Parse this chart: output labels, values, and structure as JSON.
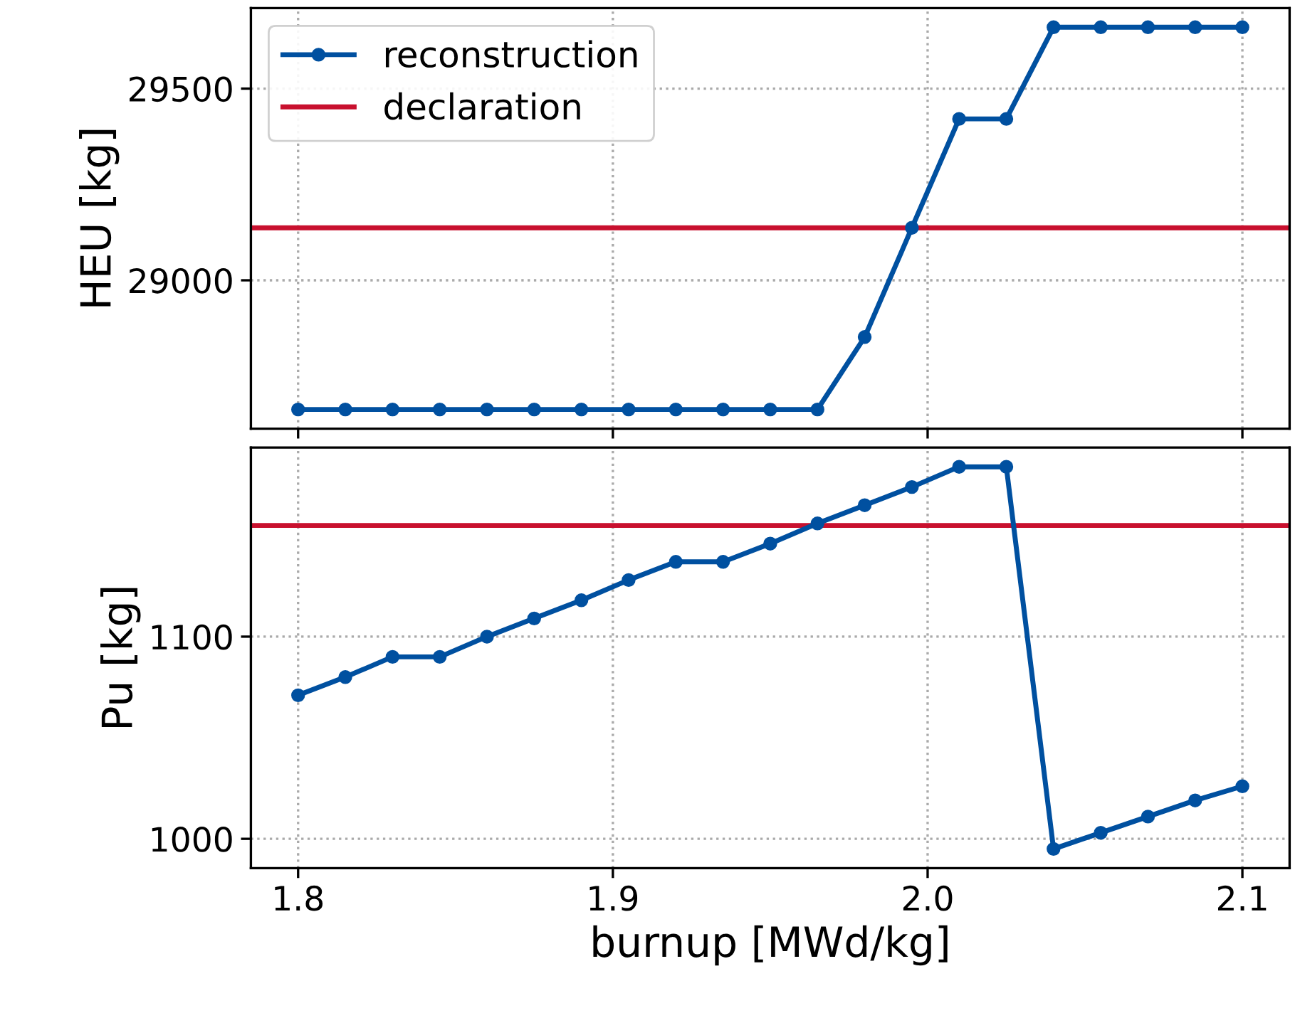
{
  "chart_data": [
    {
      "type": "line",
      "ylabel": "HEU [kg]",
      "x": [
        1.8,
        1.815,
        1.83,
        1.845,
        1.86,
        1.875,
        1.89,
        1.905,
        1.92,
        1.935,
        1.95,
        1.965,
        1.98,
        1.995,
        2.01,
        2.025,
        2.04,
        2.055,
        2.07,
        2.085,
        2.1
      ],
      "series": [
        {
          "name": "reconstruction",
          "color": "#0050a0",
          "values": [
            28663,
            28663,
            28663,
            28663,
            28663,
            28663,
            28663,
            28663,
            28663,
            28663,
            28663,
            28663,
            28852,
            29137,
            29421,
            29421,
            29660,
            29660,
            29660,
            29660,
            29660
          ]
        }
      ],
      "ref_lines": [
        {
          "axis": "y",
          "value": 29137,
          "label": "declaration",
          "color": "#c8102e"
        }
      ],
      "xlim": [
        1.785,
        2.115
      ],
      "xticks": [
        1.8,
        1.9,
        2.0,
        2.1
      ],
      "ylim": [
        28613,
        29710
      ],
      "yticks": [
        29000,
        29500
      ],
      "tick_labels": "y",
      "grid": true,
      "legend": "top left",
      "marker": "circle",
      "line_style": "solid"
    },
    {
      "type": "line",
      "xlabel": "burnup [MWd/kg]",
      "ylabel": "Pu [kg]",
      "x": [
        1.8,
        1.815,
        1.83,
        1.845,
        1.86,
        1.875,
        1.89,
        1.905,
        1.92,
        1.935,
        1.95,
        1.965,
        1.98,
        1.995,
        2.01,
        2.025,
        2.04,
        2.055,
        2.07,
        2.085,
        2.1
      ],
      "series": [
        {
          "color": "#0050a0",
          "values": [
            1071,
            1080,
            1090,
            1090,
            1100,
            1109,
            1118,
            1128,
            1137,
            1137,
            1146,
            1156,
            1165,
            1174,
            1184,
            1184,
            995,
            1003,
            1011,
            1019,
            1026
          ]
        }
      ],
      "ref_lines": [
        {
          "axis": "y",
          "value": 1155,
          "color": "#c8102e"
        }
      ],
      "xlim": [
        1.785,
        2.115
      ],
      "xticks": [
        1.8,
        1.9,
        {
          "value": 2.0,
          "label": "2.0"
        },
        2.1
      ],
      "ylim": [
        985.5,
        1193.5
      ],
      "yticks": [
        1000,
        1100
      ],
      "grid": true,
      "marker": "circle",
      "line_style": "solid"
    }
  ]
}
